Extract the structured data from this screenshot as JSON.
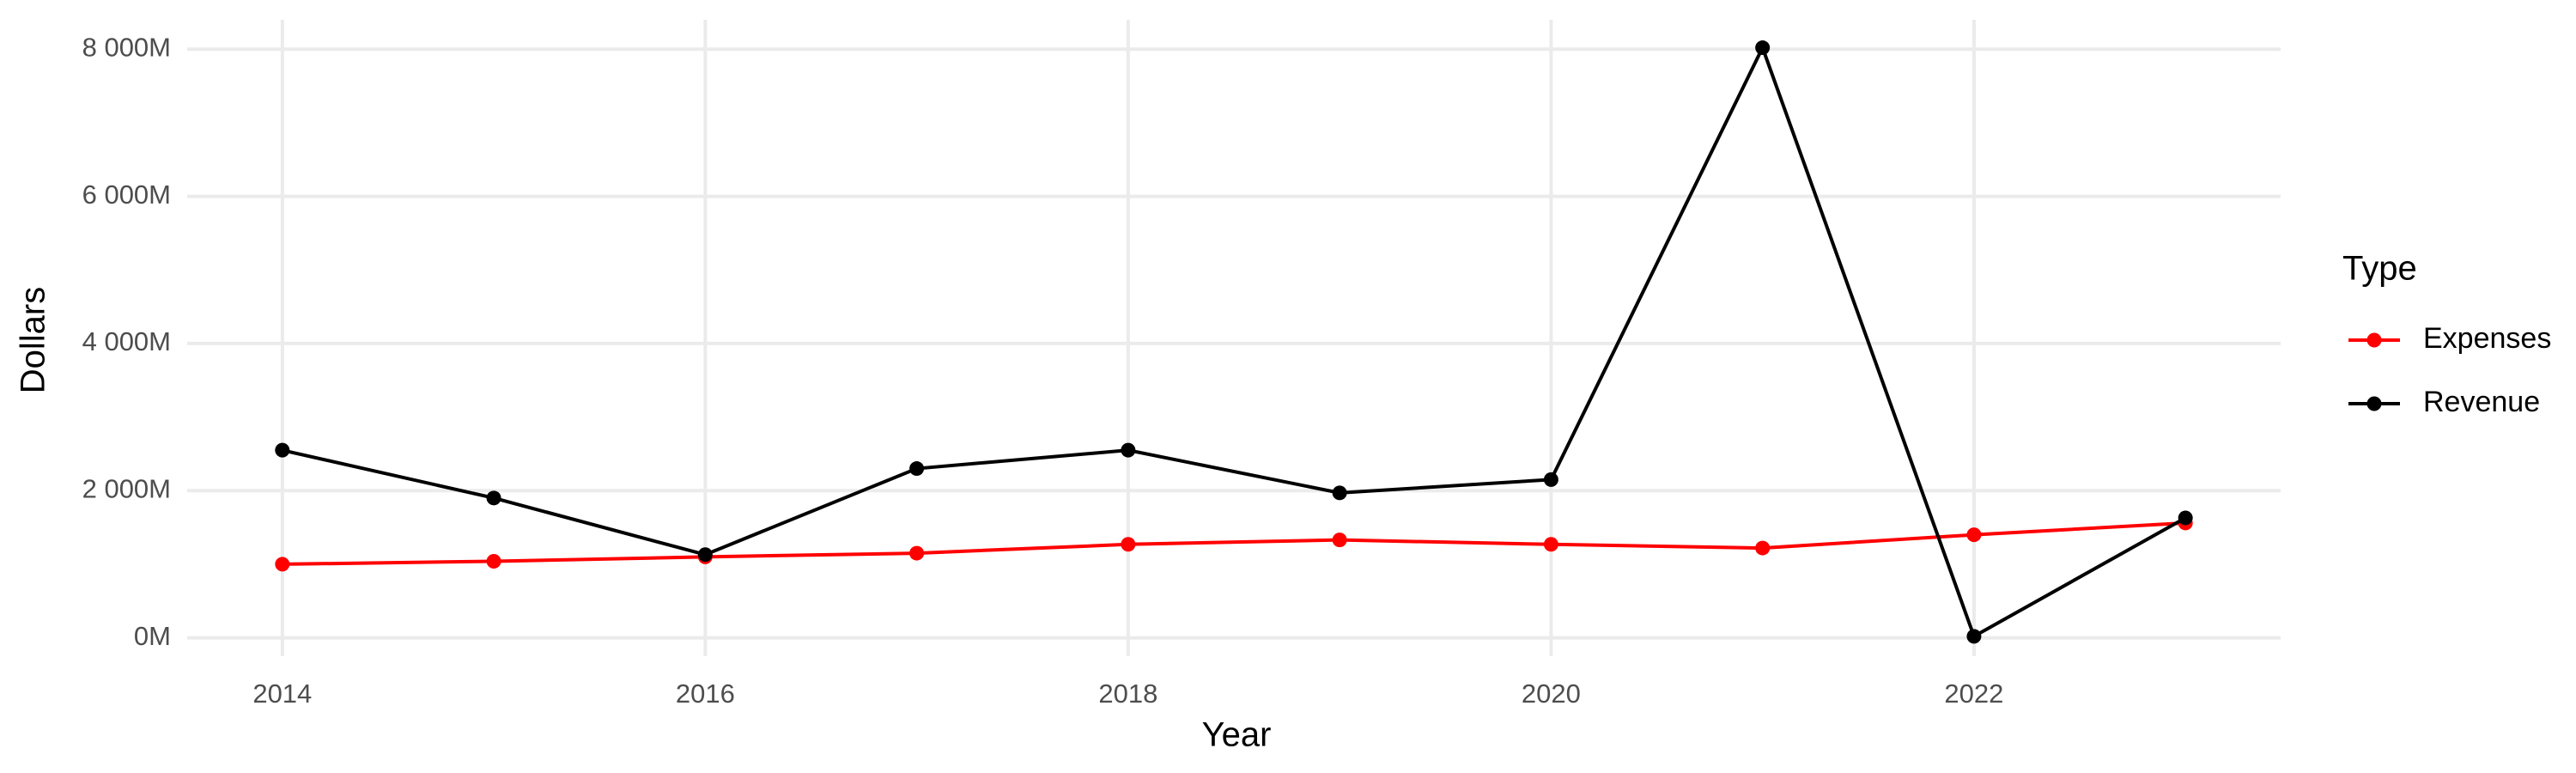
{
  "chart_data": {
    "type": "line",
    "x": [
      2014,
      2015,
      2016,
      2017,
      2018,
      2019,
      2020,
      2021,
      2022,
      2023
    ],
    "series": [
      {
        "name": "Expenses",
        "color": "#ff0000",
        "values": [
          1000,
          1040,
          1100,
          1150,
          1270,
          1330,
          1270,
          1220,
          1400,
          1560
        ]
      },
      {
        "name": "Revenue",
        "color": "#000000",
        "values": [
          2550,
          1900,
          1130,
          2300,
          2550,
          1970,
          2150,
          8020,
          20,
          1630
        ]
      }
    ],
    "xlabel": "Year",
    "ylabel": "Dollars",
    "legend_title": "Type",
    "legend": "right",
    "xlim": [
      2013.55,
      2023.45
    ],
    "xticks": [
      2014,
      2016,
      2018,
      2020,
      2022
    ],
    "ylim": [
      -250,
      8400
    ],
    "yticks": [
      {
        "value": 0,
        "label": "0M"
      },
      {
        "value": 2000,
        "label": "2 000M"
      },
      {
        "value": 4000,
        "label": "4 000M"
      },
      {
        "value": 6000,
        "label": "6 000M"
      },
      {
        "value": 8000,
        "label": "8 000M"
      }
    ],
    "grid": true
  }
}
